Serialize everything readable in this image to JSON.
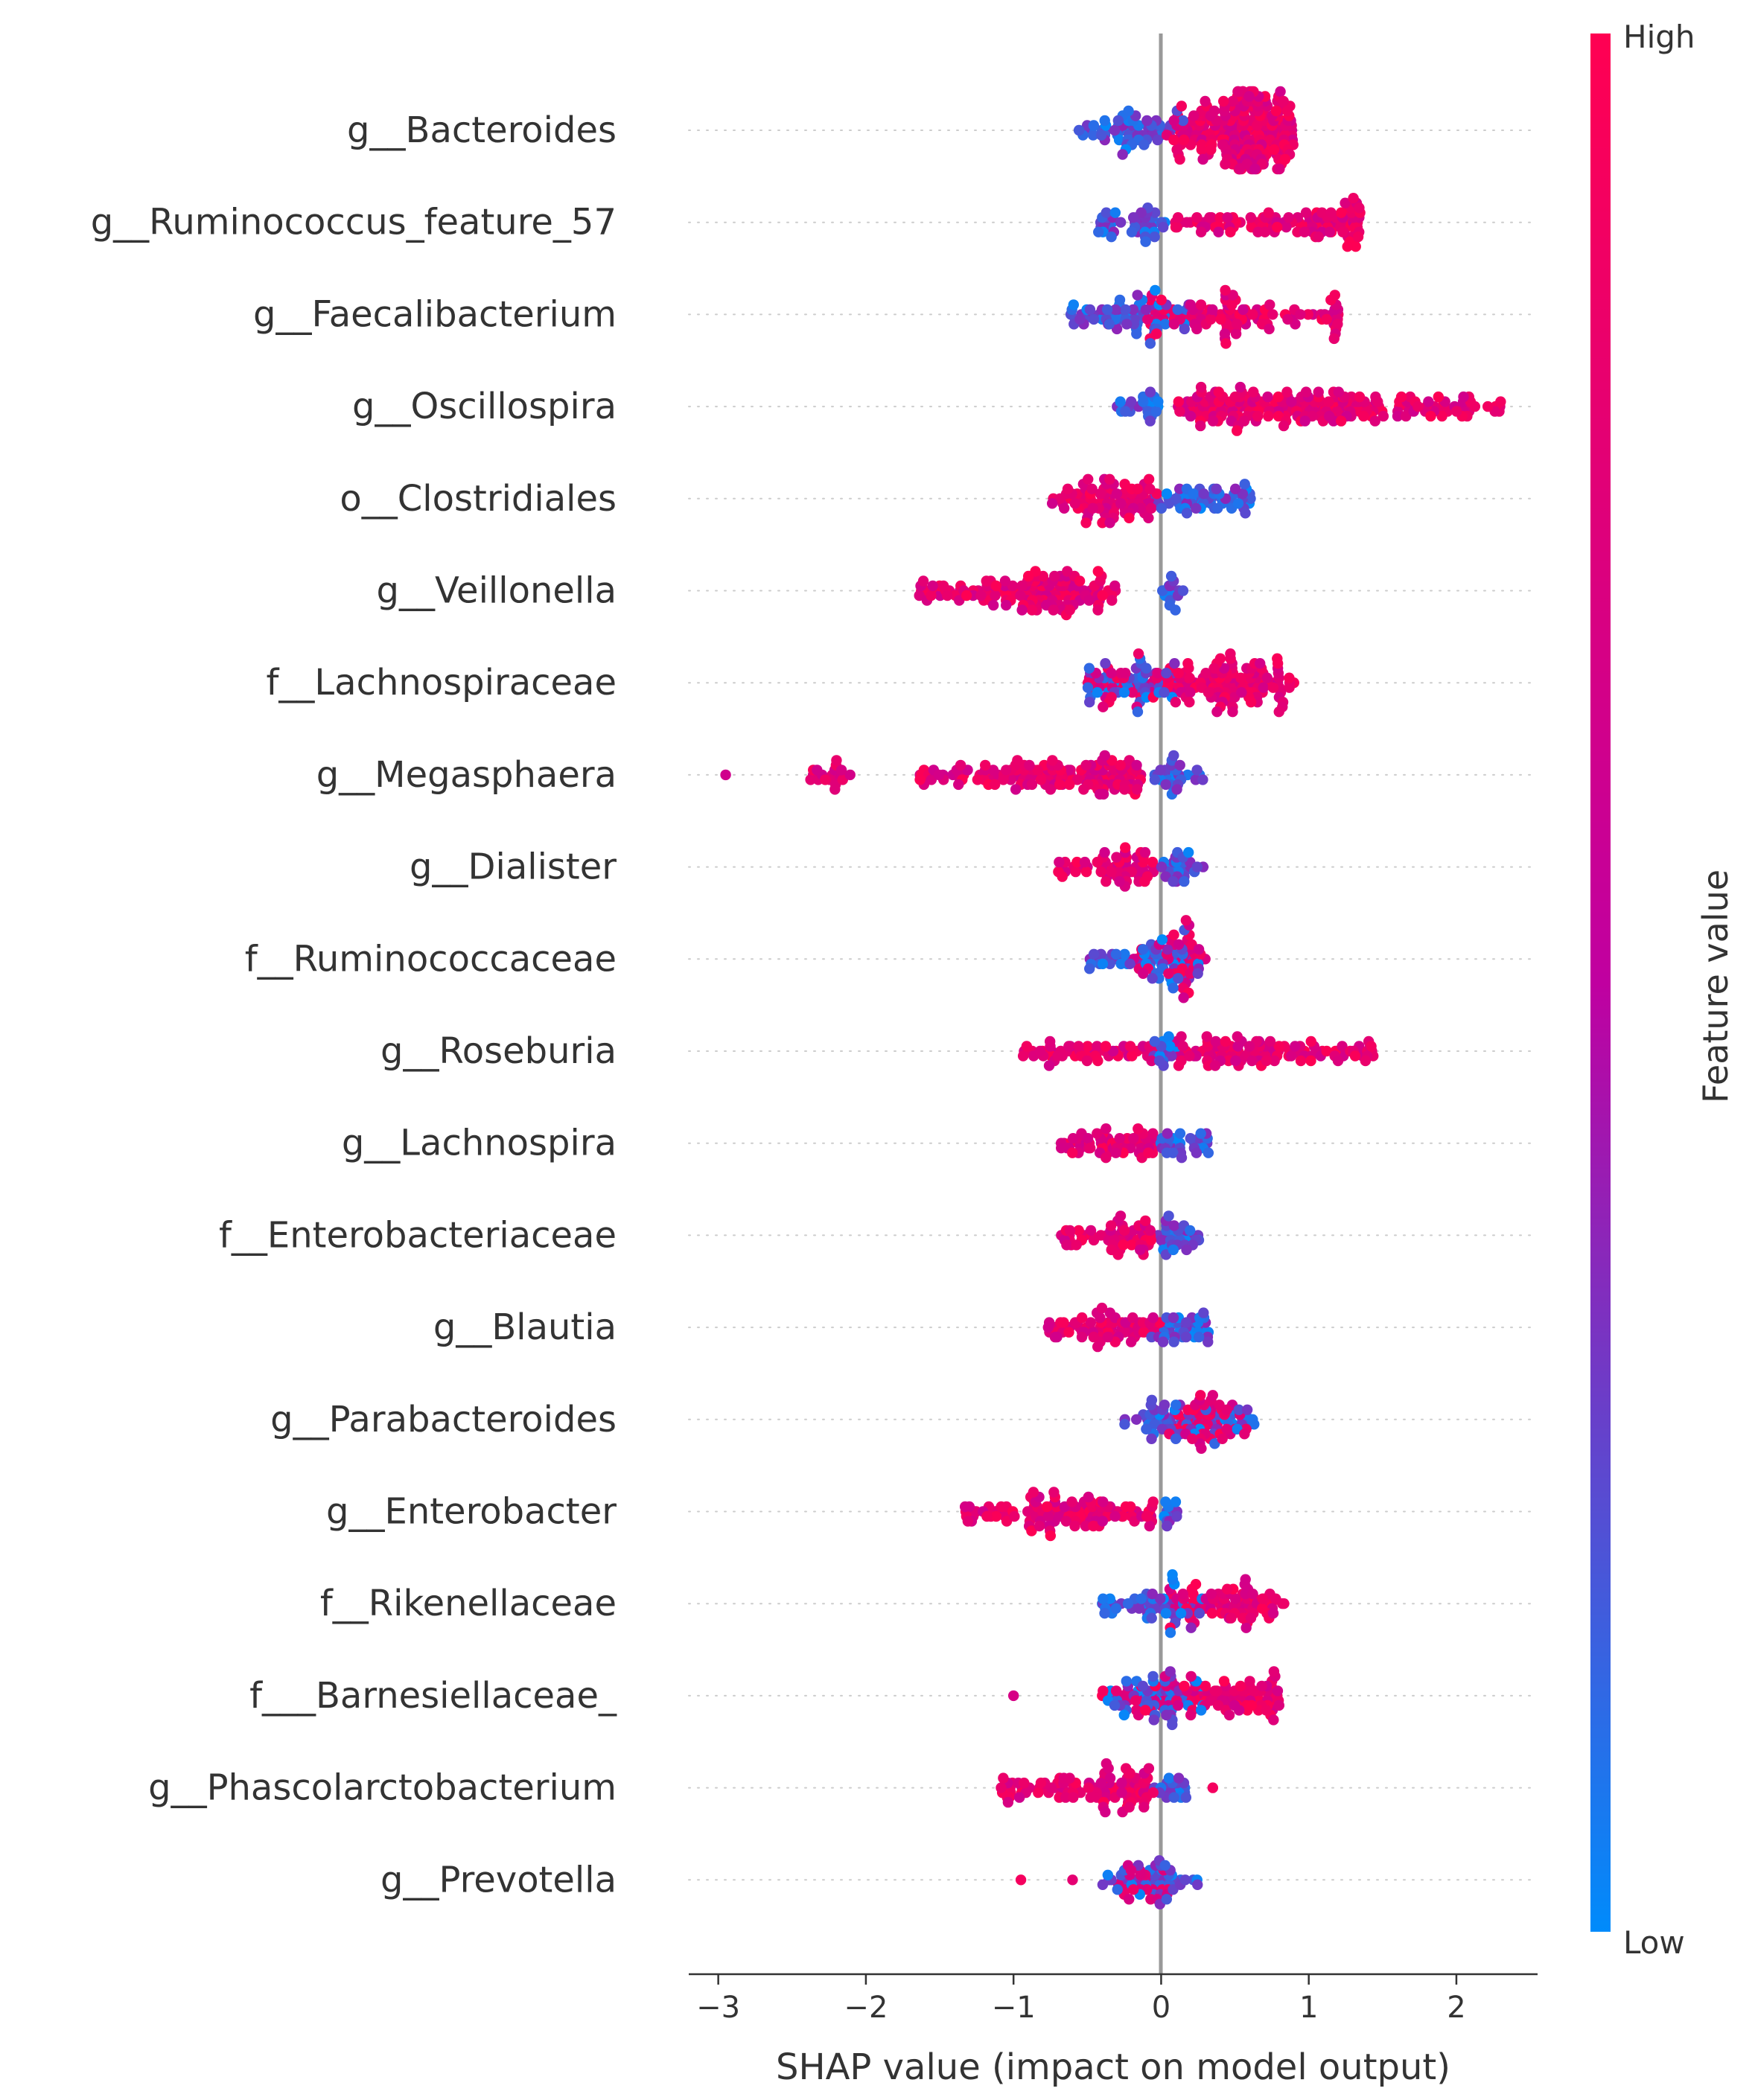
{
  "chart_data": {
    "type": "scatter",
    "subtype": "shap-beeswarm",
    "title": "",
    "xlabel": "SHAP value (impact on model output)",
    "ylabel": "",
    "xlim": [
      -3.2,
      2.55
    ],
    "xticks": [
      -3,
      -2,
      -1,
      0,
      1,
      2
    ],
    "xtick_labels": [
      "−3",
      "−2",
      "−1",
      "0",
      "1",
      "2"
    ],
    "grid": false,
    "colorbar": {
      "label": "Feature value",
      "high_label": "High",
      "low_label": "Low",
      "low_color": "#008bfb",
      "mid_color": "#c000a0",
      "high_color": "#ff0052"
    },
    "features": [
      {
        "name": "g__Bacteroides",
        "high": [
          [
            0.0,
            0.9
          ],
          [
            0.4,
            0.9
          ],
          [
            0.7,
            0.9
          ],
          [
            0.9,
            0.12
          ],
          [
            0.1,
            0.6
          ],
          [
            0.8,
            0.9
          ],
          [
            0.6,
            0.8
          ],
          [
            0.5,
            0.9
          ],
          [
            0.3,
            0.7
          ],
          [
            0.2,
            0.7
          ]
        ],
        "low": [
          [
            -0.62,
            -0.05
          ],
          [
            -0.3,
            0.15
          ]
        ]
      },
      {
        "name": "g__Ruminococcus_feature_57",
        "high": [
          [
            0.05,
            0.5
          ],
          [
            0.5,
            0.9
          ],
          [
            0.9,
            1.35
          ],
          [
            1.0,
            1.35
          ],
          [
            1.1,
            1.35
          ]
        ],
        "low": [
          [
            -0.45,
            0.0
          ],
          [
            -0.2,
            0.05
          ]
        ]
      },
      {
        "name": "g__Faecalibacterium",
        "high": [
          [
            -0.1,
            0.4
          ],
          [
            0.4,
            0.9
          ],
          [
            0.9,
            1.2
          ],
          [
            1.15,
            1.2
          ],
          [
            0.2,
            0.6
          ]
        ],
        "low": [
          [
            -0.62,
            0.0
          ],
          [
            -0.35,
            0.2
          ]
        ]
      },
      {
        "name": "g__Oscillospira",
        "high": [
          [
            0.05,
            0.5
          ],
          [
            0.5,
            1.0
          ],
          [
            1.0,
            2.0
          ],
          [
            2.0,
            2.3
          ],
          [
            0.2,
            1.5
          ]
        ],
        "low": [
          [
            -0.3,
            0.0
          ],
          [
            -0.1,
            0.0
          ]
        ]
      },
      {
        "name": "o__Clostridiales",
        "high": [
          [
            -0.75,
            -0.05
          ],
          [
            -0.4,
            0.0
          ],
          [
            -0.6,
            -0.2
          ]
        ],
        "low": [
          [
            -0.05,
            0.62
          ],
          [
            0.1,
            0.4
          ]
        ]
      },
      {
        "name": "g__Veillonella",
        "high": [
          [
            -1.65,
            -0.4
          ],
          [
            -1.2,
            -0.6
          ],
          [
            -0.9,
            -0.3
          ]
        ],
        "low": [
          [
            0.0,
            0.15
          ],
          [
            0.05,
            0.1
          ]
        ]
      },
      {
        "name": "f__Lachnospiraceae",
        "high": [
          [
            -0.5,
            0.9
          ],
          [
            0.0,
            0.8
          ],
          [
            0.3,
            0.7
          ]
        ],
        "low": [
          [
            -0.5,
            0.1
          ],
          [
            -0.2,
            0.0
          ]
        ]
      },
      {
        "name": "g__Megasphaera",
        "high": [
          [
            -2.95,
            -2.95
          ],
          [
            -2.4,
            -2.05
          ],
          [
            -1.65,
            -0.1
          ],
          [
            -1.0,
            -0.1
          ]
        ],
        "low": [
          [
            -0.05,
            0.3
          ],
          [
            0.0,
            0.15
          ]
        ]
      },
      {
        "name": "g__Dialister",
        "high": [
          [
            -0.7,
            -0.05
          ],
          [
            -0.4,
            -0.05
          ]
        ],
        "low": [
          [
            -0.05,
            0.3
          ],
          [
            0.0,
            0.15
          ]
        ]
      },
      {
        "name": "f__Ruminococcaceae",
        "high": [
          [
            -0.2,
            0.3
          ],
          [
            0.0,
            0.2
          ]
        ],
        "low": [
          [
            -0.5,
            0.3
          ],
          [
            -0.1,
            0.15
          ]
        ]
      },
      {
        "name": "g__Roseburia",
        "high": [
          [
            -0.95,
            -0.05
          ],
          [
            0.1,
            1.45
          ],
          [
            0.3,
            0.8
          ]
        ],
        "low": [
          [
            -0.05,
            0.15
          ],
          [
            0.0,
            0.1
          ]
        ]
      },
      {
        "name": "g__Lachnospira",
        "high": [
          [
            -0.7,
            -0.05
          ],
          [
            -0.4,
            -0.05
          ]
        ],
        "low": [
          [
            -0.05,
            0.32
          ],
          [
            0.0,
            0.15
          ]
        ]
      },
      {
        "name": "f__Enterobacteriaceae",
        "high": [
          [
            -0.7,
            -0.05
          ],
          [
            -0.4,
            -0.05
          ]
        ],
        "low": [
          [
            -0.05,
            0.3
          ],
          [
            0.0,
            0.2
          ]
        ]
      },
      {
        "name": "g__Blautia",
        "high": [
          [
            -0.78,
            0.0
          ],
          [
            -0.45,
            -0.05
          ]
        ],
        "low": [
          [
            -0.1,
            0.38
          ],
          [
            0.0,
            0.2
          ]
        ]
      },
      {
        "name": "g__Parabacteroides",
        "high": [
          [
            0.05,
            0.6
          ],
          [
            0.1,
            0.4
          ]
        ],
        "low": [
          [
            -0.25,
            0.65
          ],
          [
            -0.1,
            0.15
          ]
        ]
      },
      {
        "name": "g__Enterobacter",
        "high": [
          [
            -1.35,
            -0.05
          ],
          [
            -0.9,
            -0.3
          ]
        ],
        "low": [
          [
            0.0,
            0.12
          ],
          [
            0.02,
            0.1
          ]
        ]
      },
      {
        "name": "f__Rikenellaceae",
        "high": [
          [
            0.05,
            0.85
          ],
          [
            0.2,
            0.8
          ]
        ],
        "low": [
          [
            -0.4,
            0.3
          ],
          [
            -0.1,
            0.1
          ]
        ]
      },
      {
        "name": "f___Barnesiellaceae_",
        "high": [
          [
            -1.0,
            -1.0
          ],
          [
            -0.4,
            0.85
          ],
          [
            0.2,
            0.8
          ]
        ],
        "low": [
          [
            -0.4,
            0.3
          ],
          [
            -0.1,
            0.1
          ]
        ]
      },
      {
        "name": "g__Phascolarctobacterium",
        "high": [
          [
            -1.1,
            -0.05
          ],
          [
            -0.7,
            -0.05
          ],
          [
            0.35,
            0.35
          ]
        ],
        "low": [
          [
            -0.05,
            0.2
          ],
          [
            0.0,
            0.1
          ]
        ]
      },
      {
        "name": "g__Prevotella",
        "high": [
          [
            -0.95,
            -0.95
          ],
          [
            -0.6,
            -0.6
          ],
          [
            -0.3,
            0.05
          ]
        ],
        "low": [
          [
            -0.4,
            0.25
          ],
          [
            -0.05,
            0.1
          ]
        ]
      }
    ]
  }
}
